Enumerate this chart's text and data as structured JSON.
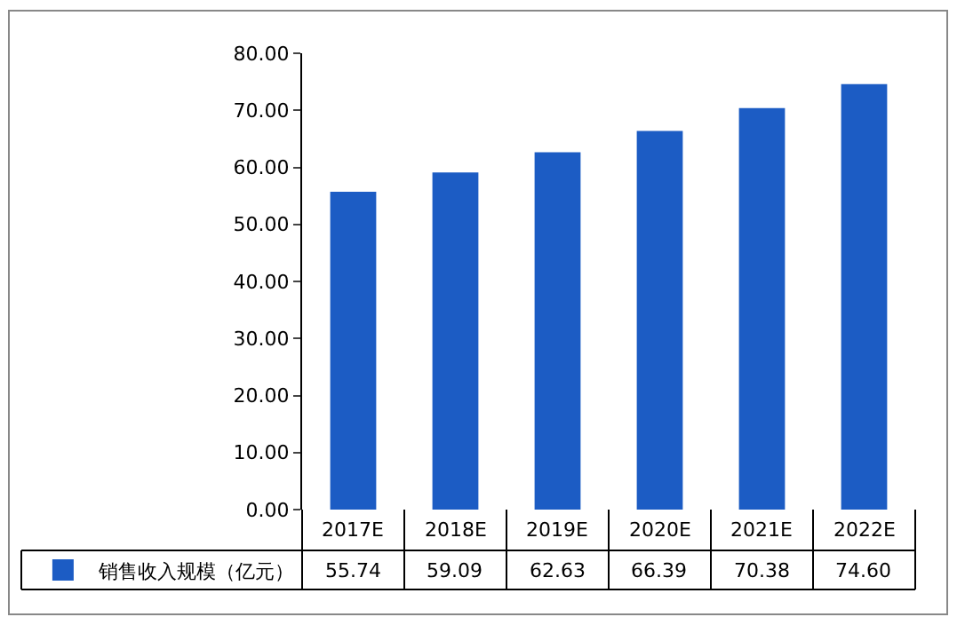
{
  "chart_data": {
    "type": "bar",
    "categories": [
      "2017E",
      "2018E",
      "2019E",
      "2020E",
      "2021E",
      "2022E"
    ],
    "series": [
      {
        "name": "销售收入规模（亿元）",
        "color": "#1c5cc4",
        "values": [
          55.74,
          59.09,
          62.63,
          66.39,
          70.38,
          74.6
        ],
        "value_labels": [
          "55.74",
          "59.09",
          "62.63",
          "66.39",
          "70.38",
          "74.60"
        ]
      }
    ],
    "ylim": [
      0,
      80
    ],
    "yticks": [
      {
        "value": 0,
        "label": "0.00"
      },
      {
        "value": 10,
        "label": "10.00"
      },
      {
        "value": 20,
        "label": "20.00"
      },
      {
        "value": 30,
        "label": "30.00"
      },
      {
        "value": 40,
        "label": "40.00"
      },
      {
        "value": 50,
        "label": "50.00"
      },
      {
        "value": 60,
        "label": "60.00"
      },
      {
        "value": 70,
        "label": "70.00"
      },
      {
        "value": 80,
        "label": "80.00"
      }
    ],
    "legend": "bottom left"
  }
}
